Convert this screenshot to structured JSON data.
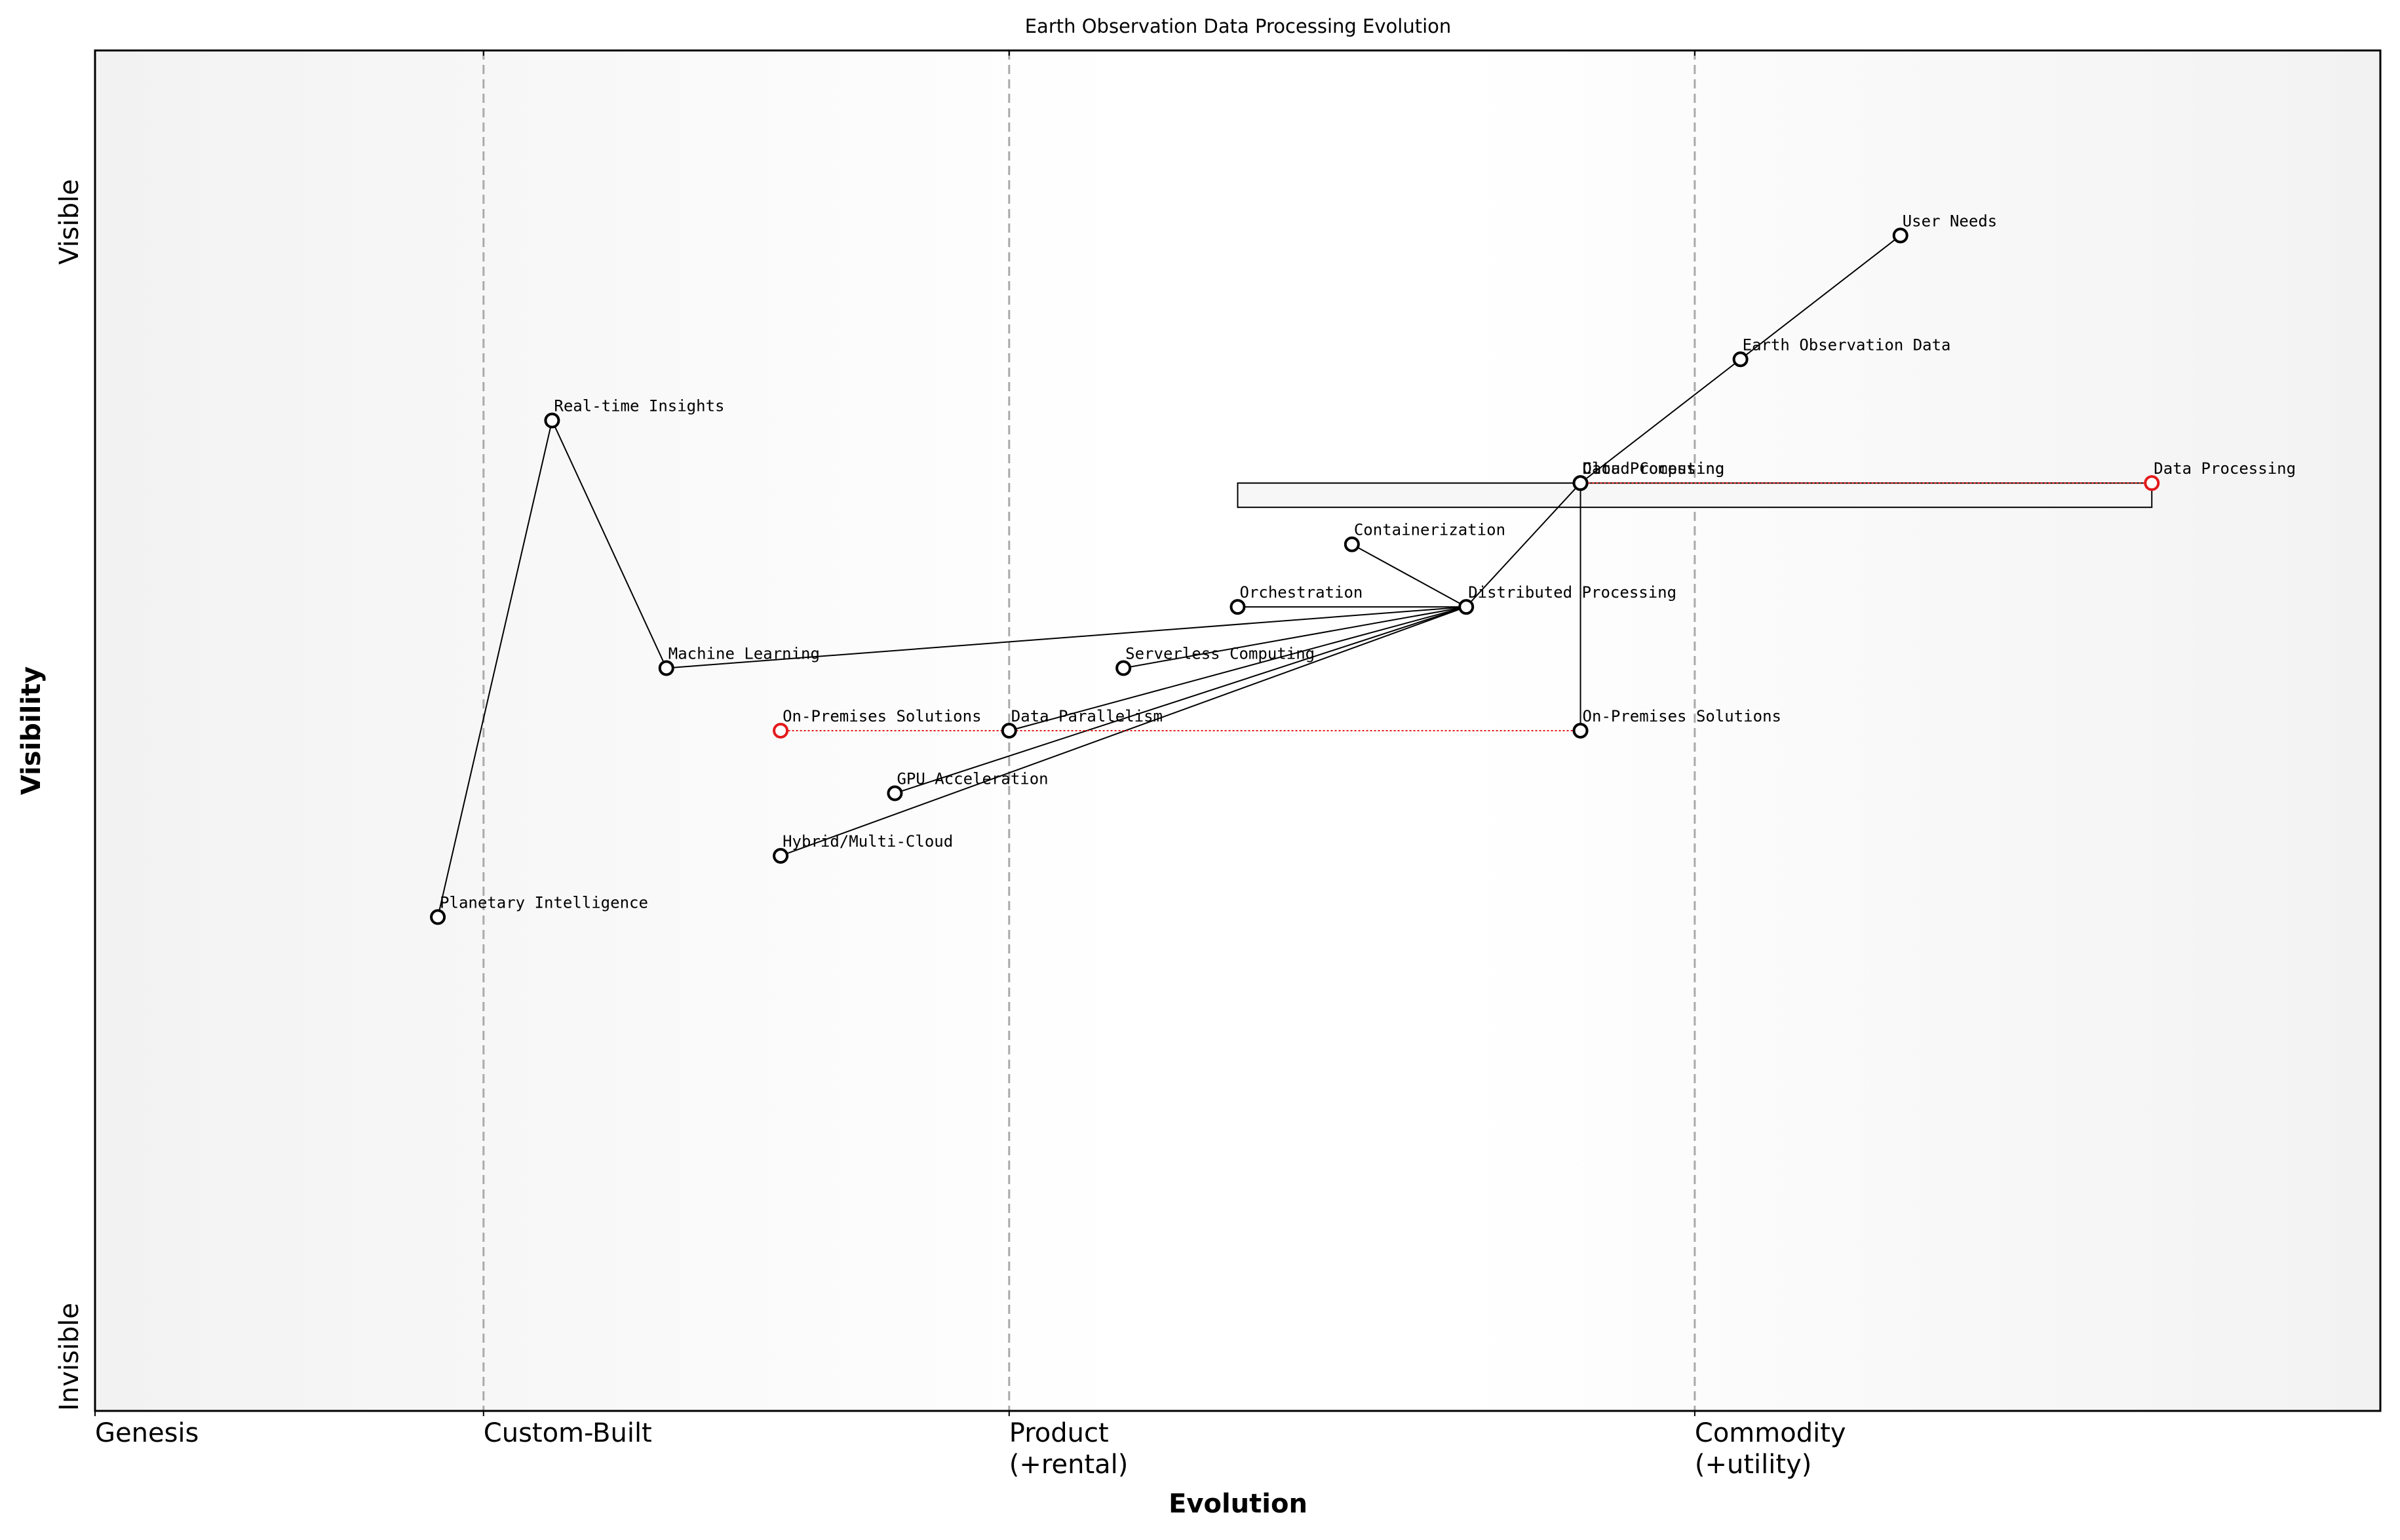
{
  "chart_data": {
    "type": "wardley",
    "title": "Earth Observation Data Processing Evolution",
    "x_label": "Evolution",
    "y_label": "Visibility",
    "xlim": [
      0,
      1
    ],
    "ylim": [
      0,
      1
    ],
    "xticks": [
      {
        "value": 0,
        "label": "Genesis"
      },
      {
        "value": 0.17,
        "label": "Custom-Built"
      },
      {
        "value": 0.4,
        "label": "Product\n(+rental)"
      },
      {
        "value": 0.7,
        "label": "Commodity\n(+utility)"
      }
    ],
    "yticks": [
      {
        "value": 0,
        "label": "Invisible"
      },
      {
        "value": 0.874,
        "label": "Visible"
      }
    ],
    "nodes": [
      {
        "name": "User Needs",
        "evolution": 0.79,
        "visibility": 0.864
      },
      {
        "name": "Earth Observation Data",
        "evolution": 0.72,
        "visibility": 0.773
      },
      {
        "name": "Data Processing",
        "evolution": 0.65,
        "visibility": 0.682
      },
      {
        "name": "Cloud Computing",
        "evolution": 0.65,
        "visibility": 0.682
      },
      {
        "name": "Real-time Insights",
        "evolution": 0.2,
        "visibility": 0.728
      },
      {
        "name": "Containerization",
        "evolution": 0.55,
        "visibility": 0.637
      },
      {
        "name": "Orchestration",
        "evolution": 0.5,
        "visibility": 0.591
      },
      {
        "name": "Distributed Processing",
        "evolution": 0.6,
        "visibility": 0.591
      },
      {
        "name": "Machine Learning",
        "evolution": 0.25,
        "visibility": 0.546
      },
      {
        "name": "Serverless Computing",
        "evolution": 0.45,
        "visibility": 0.546
      },
      {
        "name": "On-Premises Solutions",
        "evolution": 0.65,
        "visibility": 0.5
      },
      {
        "name": "Data Parallelism",
        "evolution": 0.4,
        "visibility": 0.5
      },
      {
        "name": "GPU Acceleration",
        "evolution": 0.35,
        "visibility": 0.454
      },
      {
        "name": "Hybrid/Multi-Cloud",
        "evolution": 0.3,
        "visibility": 0.408
      },
      {
        "name": "Planetary Intelligence",
        "evolution": 0.15,
        "visibility": 0.363
      }
    ],
    "links": [
      [
        "User Needs",
        "Earth Observation Data"
      ],
      [
        "Earth Observation Data",
        "Data Processing"
      ],
      [
        "Data Processing",
        "Distributed Processing"
      ],
      [
        "Distributed Processing",
        "Containerization"
      ],
      [
        "Distributed Processing",
        "Orchestration"
      ],
      [
        "Distributed Processing",
        "Machine Learning"
      ],
      [
        "Distributed Processing",
        "Serverless Computing"
      ],
      [
        "Distributed Processing",
        "Data Parallelism"
      ],
      [
        "Distributed Processing",
        "GPU Acceleration"
      ],
      [
        "Distributed Processing",
        "Hybrid/Multi-Cloud"
      ],
      [
        "Real-time Insights",
        "Machine Learning"
      ],
      [
        "Real-time Insights",
        "Planetary Intelligence"
      ],
      [
        "Cloud Computing",
        "On-Premises Solutions"
      ]
    ],
    "evolve": [
      {
        "name": "Data Processing",
        "evolution": 0.9
      },
      {
        "name": "On-Premises Solutions",
        "evolution": 0.3
      }
    ],
    "pipelines": [
      {
        "name": "Data Processing",
        "start": 0.5,
        "end": 0.9
      }
    ],
    "node_color": "#000000",
    "evolve_color": "#e31a1c"
  }
}
